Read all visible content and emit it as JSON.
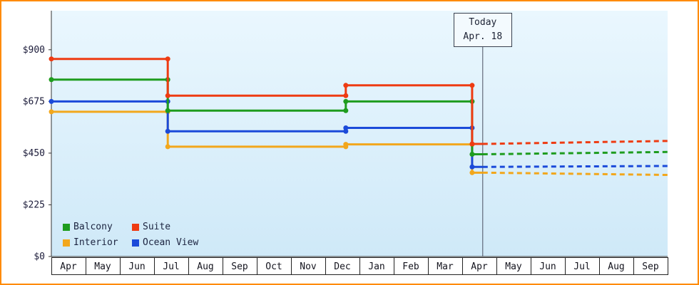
{
  "chart_data": {
    "type": "line",
    "title": "",
    "xlabel": "",
    "ylabel": "",
    "ylim": [
      0,
      1070
    ],
    "ytick_values": [
      0,
      225,
      450,
      675,
      900
    ],
    "ytick_labels": [
      "$0",
      "$225",
      "$450",
      "$675",
      "$900"
    ],
    "months": [
      "Apr",
      "May",
      "Jun",
      "Jul",
      "Aug",
      "Sep",
      "Oct",
      "Nov",
      "Dec",
      "Jan",
      "Feb",
      "Mar",
      "Apr",
      "May",
      "Jun",
      "Jul",
      "Aug",
      "Sep"
    ],
    "today": {
      "line1": "Today",
      "line2": "Apr. 18",
      "month_index": 12,
      "fraction": 0.6
    },
    "series": [
      {
        "name": "Interior",
        "color": "#f2a71c",
        "steps": [
          [
            0,
            630
          ],
          [
            3.4,
            478
          ],
          [
            8.6,
            488
          ],
          [
            12.29,
            365
          ]
        ],
        "solid_end_x": 12.6,
        "forecast": [
          [
            12.6,
            365
          ],
          [
            18,
            355
          ]
        ]
      },
      {
        "name": "Ocean View",
        "color": "#1b4ad9",
        "steps": [
          [
            0,
            675
          ],
          [
            3.4,
            545
          ],
          [
            8.6,
            560
          ],
          [
            12.29,
            390
          ]
        ],
        "solid_end_x": 12.6,
        "forecast": [
          [
            12.6,
            390
          ],
          [
            18,
            394
          ]
        ]
      },
      {
        "name": "Balcony",
        "color": "#1e9c1e",
        "steps": [
          [
            0,
            770
          ],
          [
            3.4,
            635
          ],
          [
            8.6,
            675
          ],
          [
            12.29,
            445
          ]
        ],
        "solid_end_x": 12.6,
        "forecast": [
          [
            12.6,
            445
          ],
          [
            18,
            455
          ]
        ]
      },
      {
        "name": "Suite",
        "color": "#ee3b12",
        "steps": [
          [
            0,
            860
          ],
          [
            3.4,
            700
          ],
          [
            8.6,
            745
          ],
          [
            12.29,
            490
          ]
        ],
        "solid_end_x": 12.6,
        "forecast": [
          [
            12.6,
            490
          ],
          [
            18,
            503
          ]
        ]
      }
    ],
    "legend": [
      {
        "label": "Balcony",
        "color": "#1e9c1e"
      },
      {
        "label": "Suite",
        "color": "#ee3b12"
      },
      {
        "label": "Interior",
        "color": "#f2a71c"
      },
      {
        "label": "Ocean View",
        "color": "#1b4ad9"
      }
    ],
    "legend_position": "bottom-left-inside",
    "grid": false,
    "colors": {
      "frame_border": "#ff8a00",
      "plot_bg_top": "#eaf7fe",
      "plot_bg_bottom": "#cfe9f8",
      "axis": "#333333",
      "today_line": "#4a5060",
      "month_cell_bg": "#ffffff",
      "text": "#1c1c3a"
    }
  }
}
